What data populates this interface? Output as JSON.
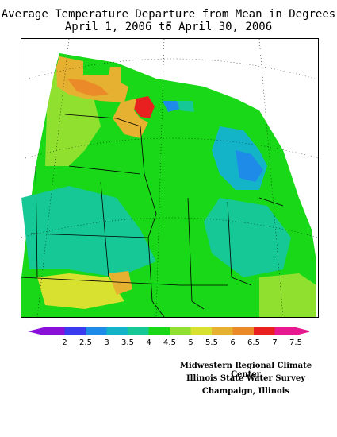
{
  "title": {
    "line1": "Average Temperature Departure from Mean in Degrees F",
    "line2": "April 1, 2006 to April 30, 2006"
  },
  "legend": {
    "labels": [
      "2",
      "2.5",
      "3",
      "3.5",
      "4",
      "4.5",
      "5",
      "5.5",
      "6",
      "6.5",
      "7",
      "7.5"
    ],
    "colors": [
      "#8a0fd8",
      "#3a3af0",
      "#1e8be8",
      "#14b4c8",
      "#16c896",
      "#18d818",
      "#90e030",
      "#d8e030",
      "#e6b030",
      "#ea8a28",
      "#e82020",
      "#e81890"
    ]
  },
  "credits": {
    "line1": "Midwestern Regional Climate Center",
    "line2": "Illinois State Water Survey",
    "line3": "Champaign, Illinois"
  },
  "palette": {
    "green": "#18d818",
    "teal": "#16c896",
    "lime": "#90e030",
    "yellow": "#d8e030",
    "orange": "#e6b030",
    "dark_orange": "#ea8a28",
    "red": "#e82020",
    "cyan": "#14b4c8",
    "blue": "#1e8be8"
  }
}
